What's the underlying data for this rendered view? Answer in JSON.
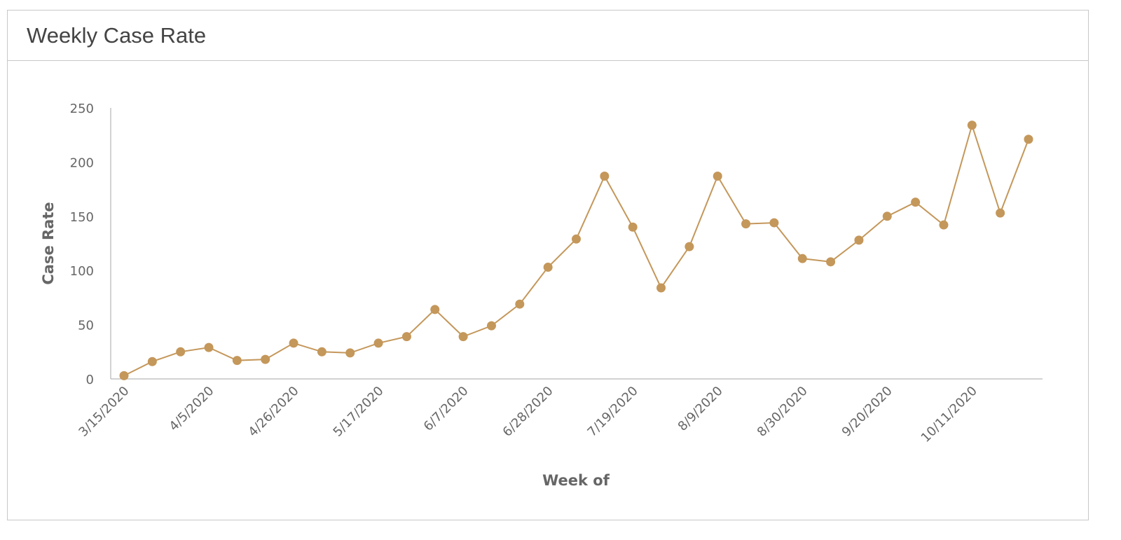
{
  "card": {
    "title": "Weekly Case Rate"
  },
  "chart_data": {
    "type": "line",
    "title": "Weekly Case Rate",
    "xlabel": "Week of",
    "ylabel": "Case Rate",
    "ylim": [
      0,
      250
    ],
    "yticks": [
      0,
      50,
      100,
      150,
      200,
      250
    ],
    "grid": false,
    "legend": "none",
    "color": "#c4975a",
    "x": [
      "3/15/2020",
      "3/22/2020",
      "3/29/2020",
      "4/5/2020",
      "4/12/2020",
      "4/19/2020",
      "4/26/2020",
      "5/3/2020",
      "5/10/2020",
      "5/17/2020",
      "5/24/2020",
      "5/31/2020",
      "6/7/2020",
      "6/14/2020",
      "6/21/2020",
      "6/28/2020",
      "7/5/2020",
      "7/12/2020",
      "7/19/2020",
      "7/26/2020",
      "8/2/2020",
      "8/9/2020",
      "8/16/2020",
      "8/23/2020",
      "8/30/2020",
      "9/6/2020",
      "9/13/2020",
      "9/20/2020",
      "9/27/2020",
      "10/4/2020",
      "10/11/2020",
      "10/18/2020",
      "10/25/2020"
    ],
    "xtick_labels": [
      "3/15/2020",
      "4/5/2020",
      "4/26/2020",
      "5/17/2020",
      "6/7/2020",
      "6/28/2020",
      "7/19/2020",
      "8/9/2020",
      "8/30/2020",
      "9/20/2020",
      "10/11/2020"
    ],
    "series": [
      {
        "values": [
          3,
          16,
          25,
          29,
          17,
          18,
          33,
          25,
          24,
          33,
          39,
          64,
          39,
          49,
          69,
          103,
          129,
          187,
          140,
          84,
          122,
          187,
          143,
          144,
          111,
          108,
          128,
          150,
          163,
          142,
          234,
          153,
          221
        ]
      }
    ]
  }
}
